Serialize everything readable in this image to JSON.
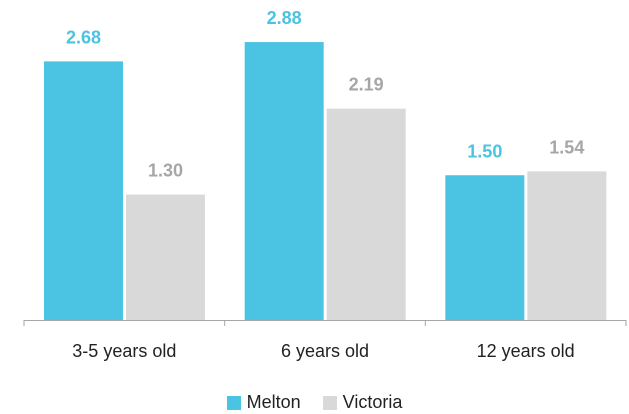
{
  "chart_data": {
    "type": "bar",
    "categories": [
      "3-5 years old",
      "6 years old",
      "12 years old"
    ],
    "series": [
      {
        "name": "Melton",
        "values": [
          2.68,
          2.88,
          1.5
        ],
        "labels": [
          "2.68",
          "2.88",
          "1.50"
        ],
        "color": "#4bc3e2",
        "label_color": "#4bc3e2"
      },
      {
        "name": "Victoria",
        "values": [
          1.3,
          2.19,
          1.54
        ],
        "labels": [
          "1.30",
          "2.19",
          "1.54"
        ],
        "color": "#d9d9d9",
        "label_color": "#a6a6a6"
      }
    ],
    "ylim": [
      0,
      3.0
    ],
    "grid": false,
    "legend_position": "bottom"
  }
}
